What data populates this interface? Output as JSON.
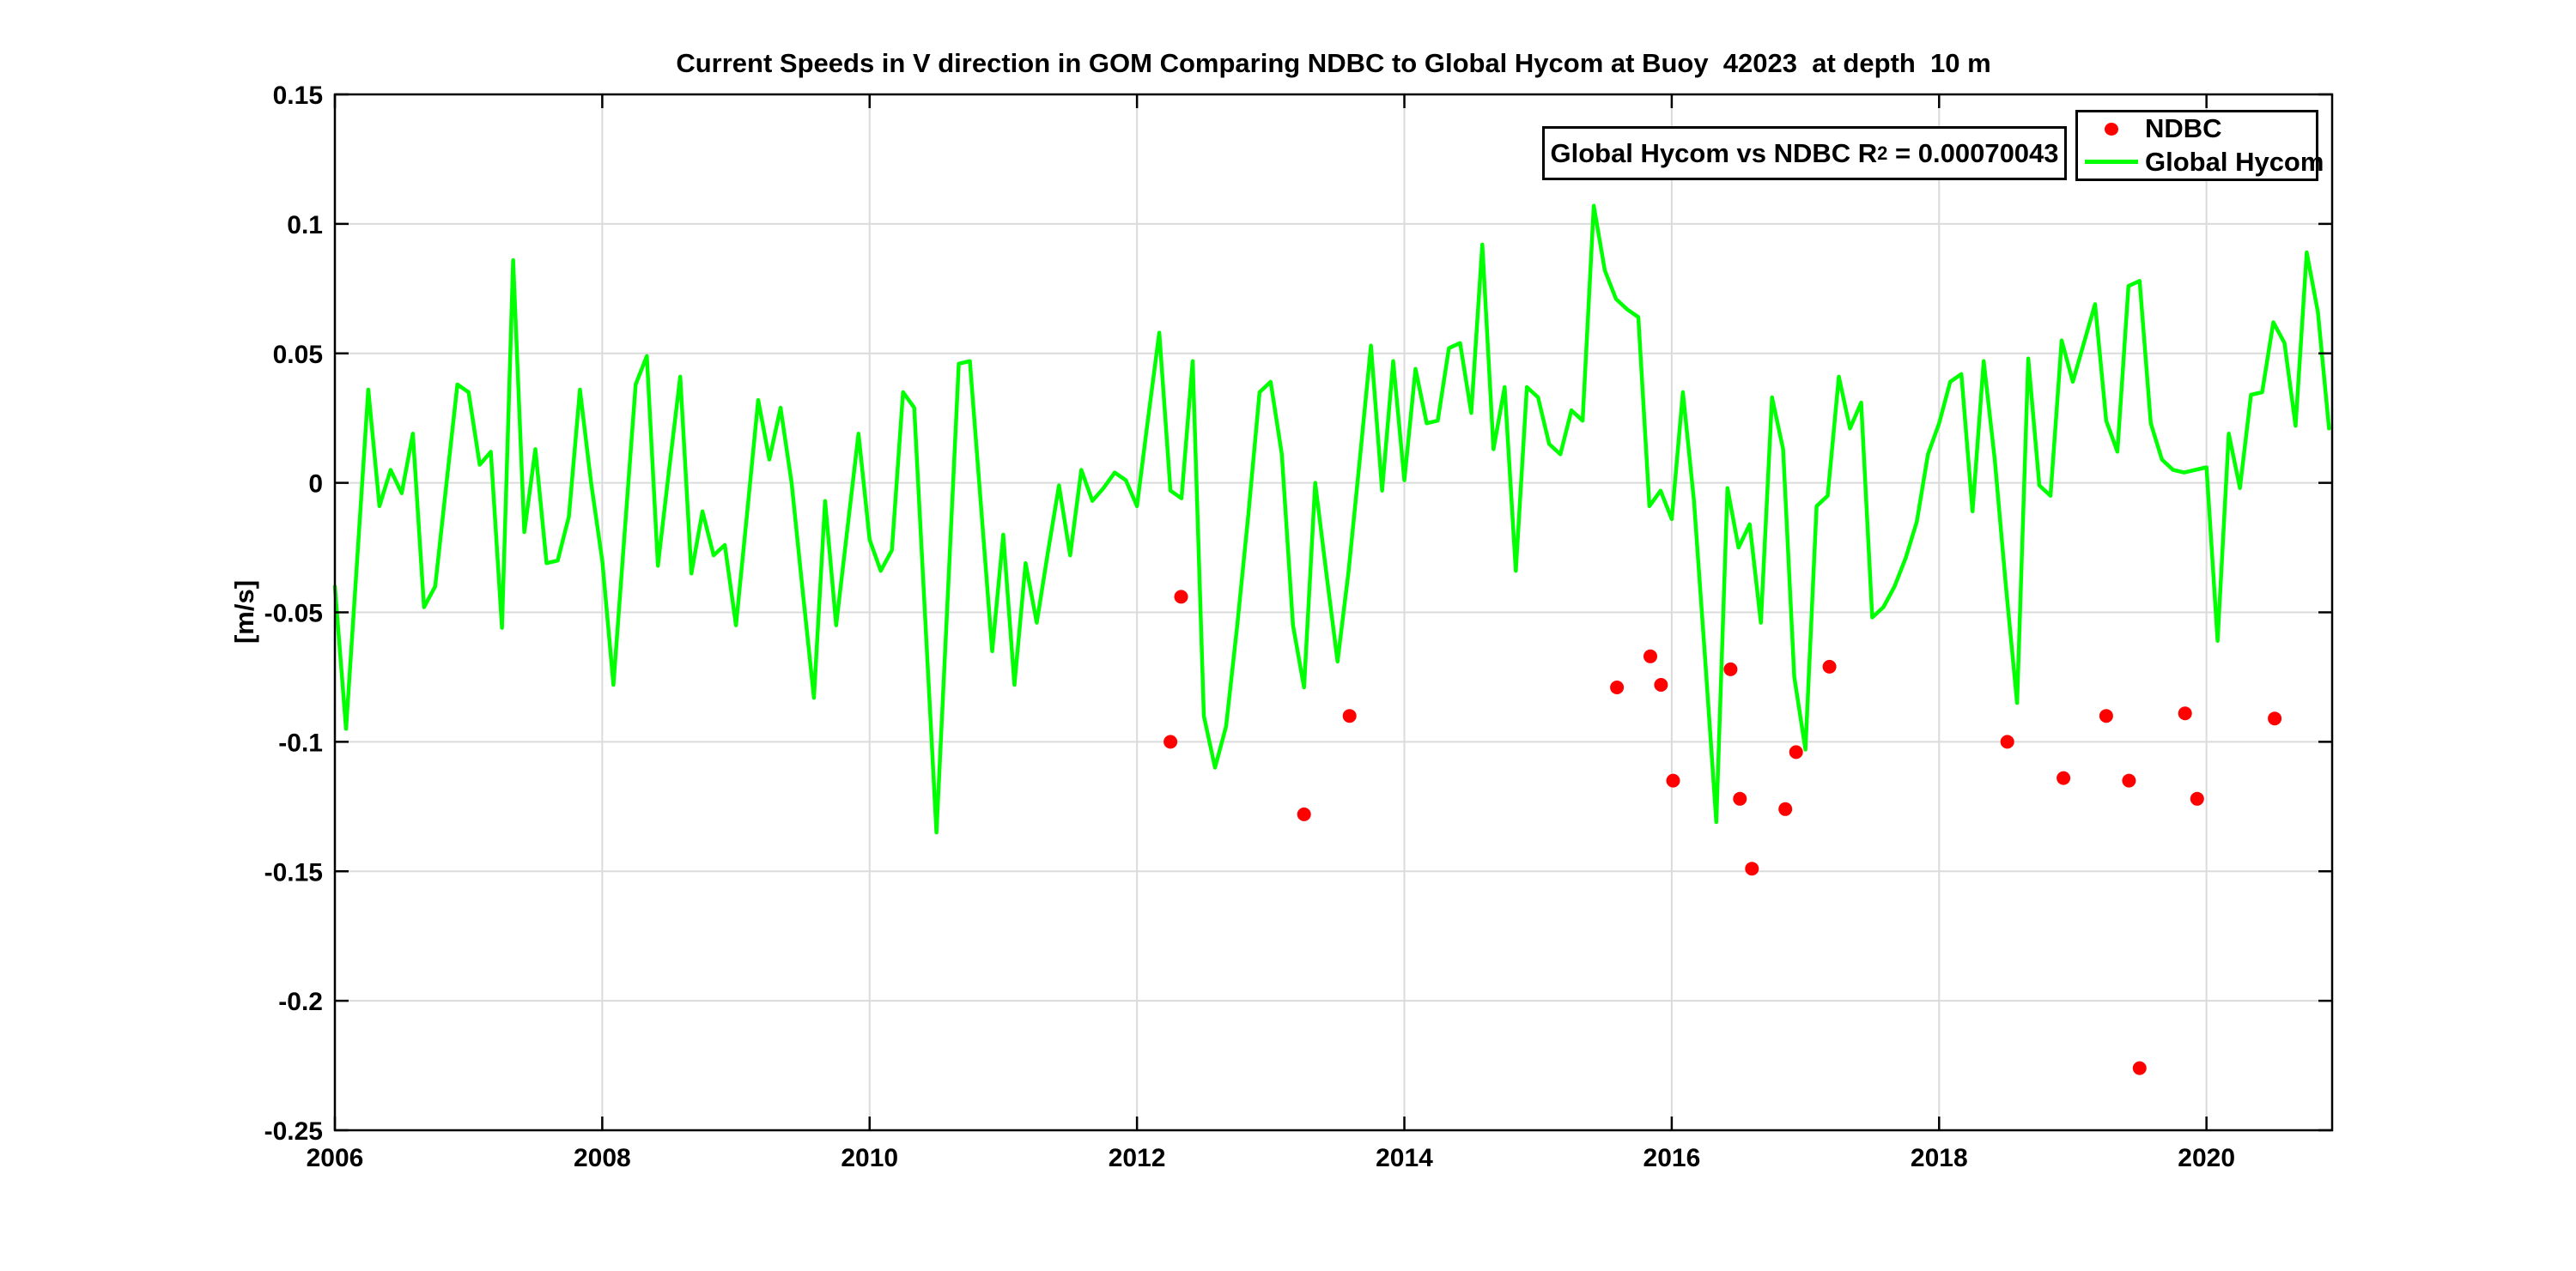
{
  "annotation_box": {
    "prefix": "Global Hycom vs NDBC R",
    "superscript": "2",
    "suffix": " = 0.00070043"
  },
  "legend": {
    "entries": [
      {
        "label": "NDBC",
        "marker": "dot",
        "color": "#FF0000"
      },
      {
        "label": "Global Hycom",
        "marker": "line",
        "color": "#00FF00"
      }
    ]
  },
  "chart_data": {
    "type": "line+scatter",
    "title": "Current Speeds in V direction in GOM Comparing NDBC to Global Hycom at Buoy  42023  at depth  10 m",
    "xlabel": "",
    "ylabel": "[m/s]",
    "grid": true,
    "legend_position": "top-right",
    "background_color": "#FFFFFF",
    "axis_color": "#000000",
    "grid_color": "#DBDBDB",
    "x_axis": {
      "min": 2006,
      "max": 2020.94,
      "ticks": [
        2006,
        2008,
        2010,
        2012,
        2014,
        2016,
        2018,
        2020
      ],
      "tick_labels": [
        "2006",
        "2008",
        "2010",
        "2012",
        "2014",
        "2016",
        "2018",
        "2020"
      ]
    },
    "y_axis": {
      "min": -0.25,
      "max": 0.15,
      "ticks": [
        -0.25,
        -0.2,
        -0.15,
        -0.1,
        -0.05,
        0,
        0.05,
        0.1,
        0.15
      ],
      "tick_labels": [
        "-0.25",
        "-0.2",
        "-0.15",
        "-0.1",
        "-0.05",
        "0",
        "0.05",
        "0.1",
        "0.15"
      ]
    },
    "series": [
      {
        "name": "Global Hycom",
        "type": "line",
        "color": "#00FF00",
        "line_width": 4.5,
        "x_start": 2006.0,
        "x_step_years": 0.0833333,
        "values": [
          -0.04,
          -0.095,
          -0.03,
          0.036,
          -0.009,
          0.005,
          -0.004,
          0.019,
          -0.048,
          -0.04,
          -0.001,
          0.038,
          0.035,
          0.007,
          0.012,
          -0.056,
          0.086,
          -0.019,
          0.013,
          -0.031,
          -0.03,
          -0.013,
          0.036,
          0.0,
          -0.03,
          -0.078,
          -0.02,
          0.038,
          0.049,
          -0.032,
          0.005,
          0.041,
          -0.035,
          -0.011,
          -0.028,
          -0.024,
          -0.055,
          -0.012,
          0.032,
          0.009,
          0.029,
          0.0,
          -0.042,
          -0.083,
          -0.007,
          -0.055,
          -0.018,
          0.019,
          -0.022,
          -0.034,
          -0.026,
          0.035,
          0.029,
          -0.053,
          -0.135,
          -0.045,
          0.046,
          0.047,
          -0.009,
          -0.065,
          -0.02,
          -0.078,
          -0.031,
          -0.054,
          -0.027,
          -0.001,
          -0.028,
          0.005,
          -0.007,
          -0.002,
          0.004,
          0.001,
          -0.009,
          0.025,
          0.058,
          -0.003,
          -0.006,
          0.047,
          -0.09,
          -0.11,
          -0.094,
          -0.055,
          -0.012,
          0.035,
          0.039,
          0.011,
          -0.055,
          -0.079,
          0.0,
          -0.035,
          -0.069,
          -0.034,
          0.009,
          0.053,
          -0.003,
          0.047,
          0.001,
          0.044,
          0.023,
          0.024,
          0.052,
          0.054,
          0.027,
          0.092,
          0.013,
          0.037,
          -0.034,
          0.037,
          0.033,
          0.015,
          0.011,
          0.028,
          0.024,
          0.107,
          0.082,
          0.071,
          0.067,
          0.064,
          -0.009,
          -0.003,
          -0.014,
          0.035,
          -0.007,
          -0.068,
          -0.131,
          -0.002,
          -0.025,
          -0.016,
          -0.054,
          0.033,
          0.013,
          -0.075,
          -0.103,
          -0.009,
          -0.005,
          0.041,
          0.021,
          0.031,
          -0.052,
          -0.048,
          -0.04,
          -0.029,
          -0.015,
          0.011,
          0.023,
          0.039,
          0.042,
          -0.011,
          0.047,
          0.009,
          -0.04,
          -0.085,
          0.048,
          -0.001,
          -0.005,
          0.055,
          0.039,
          0.054,
          0.069,
          0.024,
          0.012,
          0.076,
          0.078,
          0.023,
          0.009,
          0.005,
          0.004,
          0.005,
          0.006,
          -0.061,
          0.019,
          -0.002,
          0.034,
          0.035,
          0.062,
          0.054,
          0.022,
          0.089,
          0.066,
          0.021
        ]
      },
      {
        "name": "NDBC",
        "type": "scatter",
        "color": "#FF0000",
        "marker_radius": 8,
        "points": [
          [
            2012.25,
            -0.1
          ],
          [
            2012.33,
            -0.044
          ],
          [
            2013.25,
            -0.128
          ],
          [
            2013.59,
            -0.09
          ],
          [
            2015.59,
            -0.079
          ],
          [
            2015.84,
            -0.067
          ],
          [
            2015.92,
            -0.078
          ],
          [
            2016.01,
            -0.115
          ],
          [
            2016.44,
            -0.072
          ],
          [
            2016.51,
            -0.122
          ],
          [
            2016.6,
            -0.149
          ],
          [
            2016.85,
            -0.126
          ],
          [
            2016.93,
            -0.104
          ],
          [
            2017.18,
            -0.071
          ],
          [
            2018.51,
            -0.1
          ],
          [
            2018.93,
            -0.114
          ],
          [
            2019.25,
            -0.09
          ],
          [
            2019.42,
            -0.115
          ],
          [
            2019.5,
            -0.226
          ],
          [
            2019.84,
            -0.089
          ],
          [
            2019.93,
            -0.122
          ],
          [
            2020.51,
            -0.091
          ]
        ]
      }
    ]
  }
}
